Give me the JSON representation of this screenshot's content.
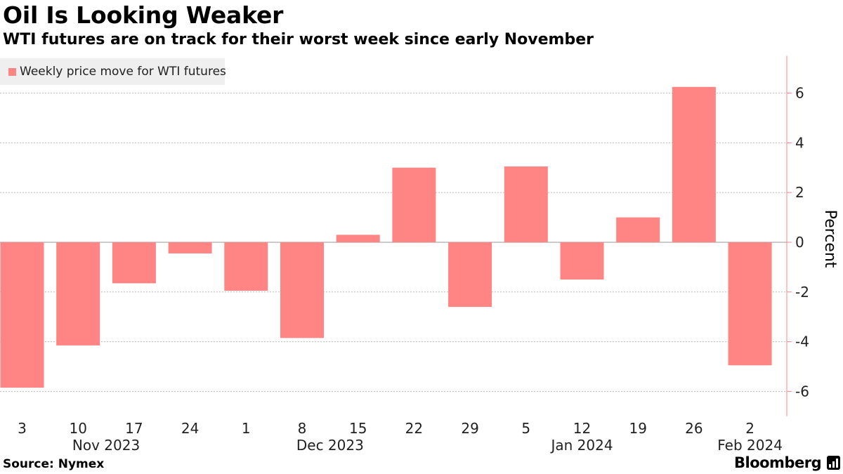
{
  "header": {
    "title": "Oil Is Looking Weaker",
    "subtitle": "WTI futures are on track for their worst week since early November"
  },
  "legend": {
    "label": "Weekly price move for WTI futures"
  },
  "footer": {
    "source": "Source: Nymex",
    "brand": "Bloomberg"
  },
  "colors": {
    "bar": "#ff8585",
    "grid": "#bdbdbd",
    "axis": "#ff8585"
  },
  "chart_data": {
    "type": "bar",
    "categories": [
      "3",
      "10",
      "17",
      "24",
      "1",
      "8",
      "15",
      "22",
      "29",
      "5",
      "12",
      "19",
      "26",
      "2"
    ],
    "month_labels": [
      {
        "label": "Nov 2023",
        "category_index": 1.5
      },
      {
        "label": "Dec 2023",
        "category_index": 5.5
      },
      {
        "label": "Jan 2024",
        "category_index": 10.0
      },
      {
        "label": "Feb 2024",
        "category_index": 13.0
      }
    ],
    "series": [
      {
        "name": "Weekly price move for WTI futures",
        "values": [
          -5.85,
          -4.15,
          -1.65,
          -0.45,
          -1.95,
          -3.85,
          0.3,
          3.0,
          -2.6,
          3.05,
          -1.5,
          1.0,
          6.25,
          -4.95
        ]
      }
    ],
    "ylabel": "Percent",
    "ylim": [
      -7,
      7.5
    ],
    "yticks": [
      -6,
      -4,
      -2,
      0,
      2,
      4,
      6
    ],
    "grid": true,
    "legend_position": "top-left"
  }
}
